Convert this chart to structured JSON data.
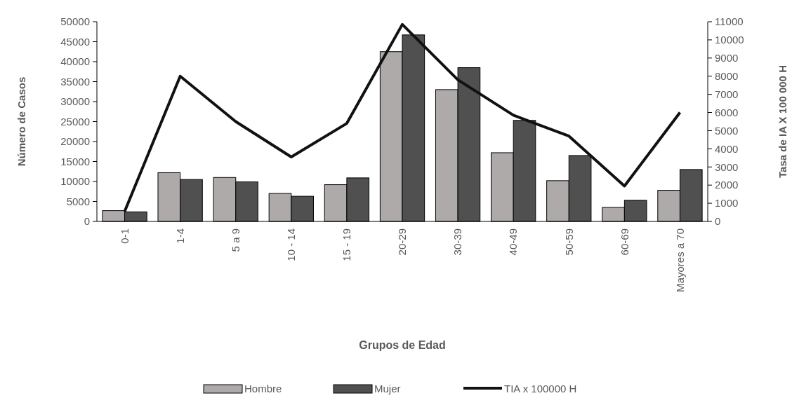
{
  "chart_data": {
    "type": "bar",
    "xlabel": "Grupos de Edad",
    "ylabel": "Número de Casos",
    "y2label": "Tasa de IA X 100 000 H",
    "categories": [
      "0-1",
      "1-4",
      "5 a 9",
      "10 - 14",
      "15 - 19",
      "20-29",
      "30-39",
      "40-49",
      "50-59",
      "60-69",
      "Mayores a 70"
    ],
    "series": [
      {
        "name": "Hombre",
        "color": "#aeaaaa",
        "values": [
          2700,
          12200,
          11000,
          7000,
          9200,
          42500,
          33000,
          17200,
          10200,
          3500,
          7800
        ]
      },
      {
        "name": "Mujer",
        "color": "#505050",
        "values": [
          2400,
          10500,
          9900,
          6300,
          10900,
          46700,
          38500,
          25300,
          16500,
          5300,
          13000
        ]
      },
      {
        "name": "TIA x 100000 H",
        "type": "line",
        "axis": "y2",
        "color": "#111111",
        "values": [
          550,
          8000,
          5500,
          3550,
          5400,
          10850,
          7800,
          5850,
          4700,
          1950,
          6000
        ]
      }
    ],
    "ylim": [
      0,
      50000
    ],
    "yticks": [
      0,
      5000,
      10000,
      15000,
      20000,
      25000,
      30000,
      35000,
      40000,
      45000,
      50000
    ],
    "y2lim": [
      0,
      11000
    ],
    "y2ticks": [
      0,
      1000,
      2000,
      3000,
      4000,
      5000,
      6000,
      7000,
      8000,
      9000,
      10000,
      11000
    ],
    "legend": "bottom",
    "grid": false,
    "marker": "none",
    "line_style": "solid"
  }
}
